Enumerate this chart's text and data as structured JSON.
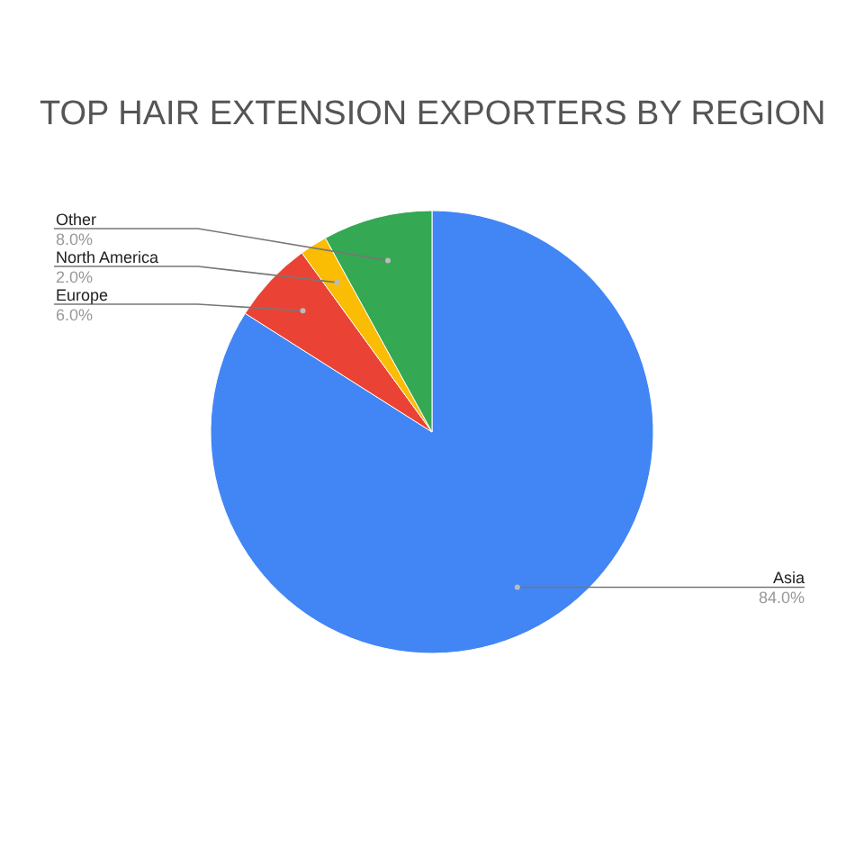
{
  "chart_data": {
    "type": "pie",
    "title": "TOP HAIR EXTENSION EXPORTERS BY REGION",
    "categories": [
      "Asia",
      "Europe",
      "North America",
      "Other"
    ],
    "values": [
      84,
      6,
      2,
      8
    ],
    "value_labels": [
      "84.0%",
      "6.0%",
      "2.0%",
      "8.0%"
    ],
    "colors": [
      "#4285f4",
      "#ea4335",
      "#fbbc04",
      "#34a853"
    ]
  }
}
